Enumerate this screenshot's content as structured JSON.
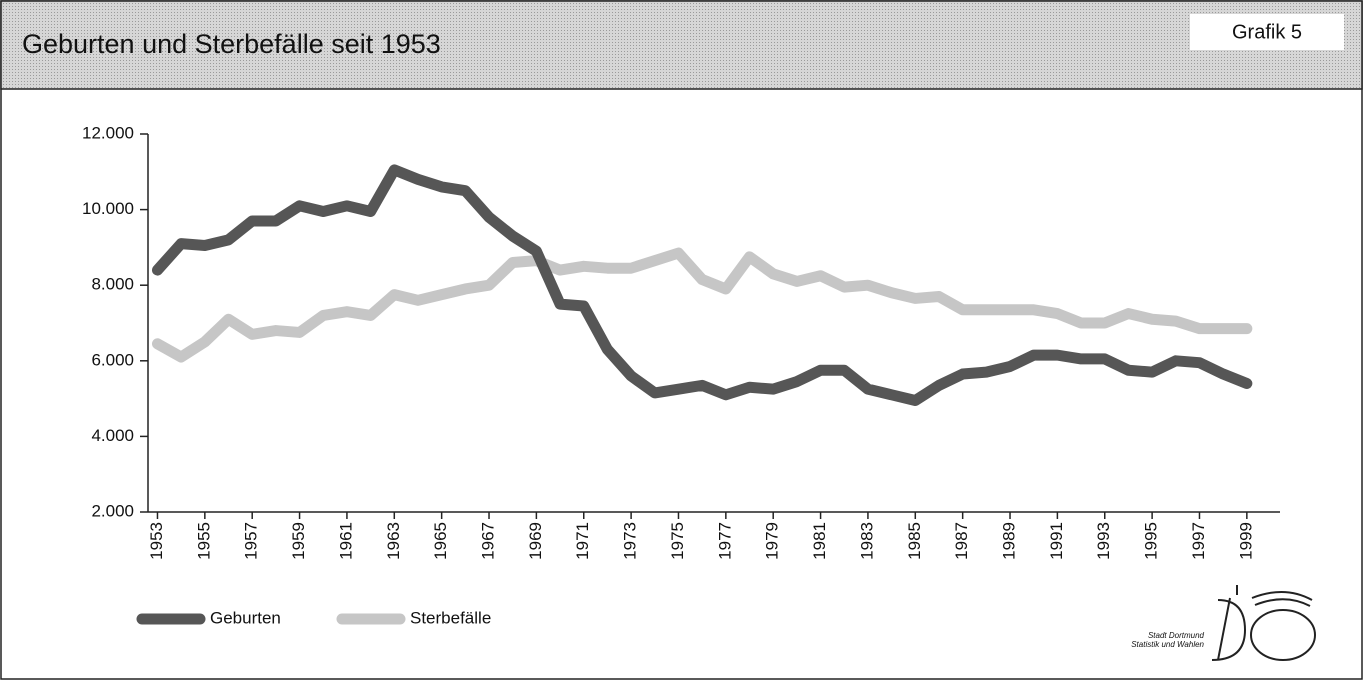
{
  "chart_data": {
    "type": "line",
    "title": "Geburten und Sterbefälle seit 1953",
    "label": "Grafik 5",
    "x": [
      1953,
      1954,
      1955,
      1956,
      1957,
      1958,
      1959,
      1960,
      1961,
      1962,
      1963,
      1964,
      1965,
      1966,
      1967,
      1968,
      1969,
      1970,
      1971,
      1972,
      1973,
      1974,
      1975,
      1976,
      1977,
      1978,
      1979,
      1980,
      1981,
      1982,
      1983,
      1984,
      1985,
      1986,
      1987,
      1988,
      1989,
      1990,
      1991,
      1992,
      1993,
      1994,
      1995,
      1996,
      1997,
      1998,
      1999
    ],
    "xlim": [
      1952.6,
      2000.4
    ],
    "xticks": [
      1953,
      1955,
      1957,
      1959,
      1961,
      1963,
      1965,
      1967,
      1969,
      1971,
      1973,
      1975,
      1977,
      1979,
      1981,
      1983,
      1985,
      1987,
      1989,
      1991,
      1993,
      1995,
      1997,
      1999
    ],
    "ylim": [
      2000,
      12000
    ],
    "yticks": [
      {
        "value": 2000,
        "label": "2.000"
      },
      {
        "value": 4000,
        "label": "4.000"
      },
      {
        "value": 6000,
        "label": "6.000"
      },
      {
        "value": 8000,
        "label": "8.000"
      },
      {
        "value": 10000,
        "label": "10.000"
      },
      {
        "value": 12000,
        "label": "12.000"
      }
    ],
    "series": [
      {
        "name": "Geburten",
        "color": "#565656",
        "values": [
          8400,
          9100,
          9050,
          9200,
          9700,
          9700,
          10100,
          9950,
          10100,
          9950,
          11050,
          10800,
          10600,
          10500,
          9800,
          9300,
          8900,
          7500,
          7450,
          6300,
          5600,
          5150,
          5250,
          5350,
          5100,
          5300,
          5250,
          5450,
          5750,
          5750,
          5250,
          5100,
          4950,
          5350,
          5650,
          5700,
          5850,
          6150,
          6150,
          6050,
          6050,
          5750,
          5700,
          6000,
          5950,
          5650,
          5400
        ]
      },
      {
        "name": "Sterbefälle",
        "color": "#c6c6c6",
        "values": [
          6450,
          6100,
          6500,
          7100,
          6700,
          6800,
          6750,
          7200,
          7300,
          7200,
          7750,
          7600,
          7750,
          7900,
          8000,
          8600,
          8650,
          8400,
          8500,
          8450,
          8450,
          8650,
          8850,
          8150,
          7900,
          8750,
          8300,
          8100,
          8250,
          7950,
          8000,
          7800,
          7650,
          7700,
          7350,
          7350,
          7350,
          7350,
          7250,
          7000,
          7000,
          7250,
          7100,
          7050,
          6850,
          6850,
          6850
        ]
      }
    ],
    "source": [
      "Stadt Dortmund",
      "Statistik und Wahlen"
    ]
  }
}
